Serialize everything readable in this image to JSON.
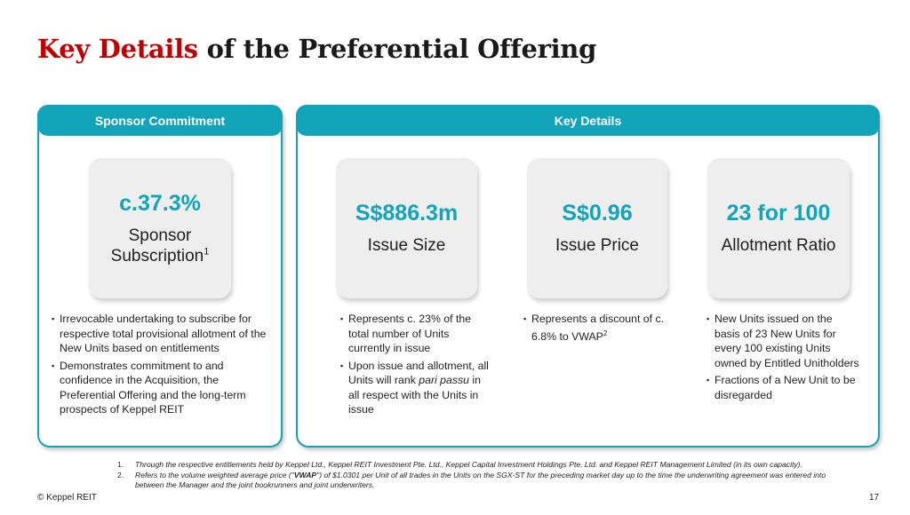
{
  "title": {
    "accent": "Key Details",
    "rest": " of the Preferential Offering"
  },
  "sponsor_panel": {
    "header": "Sponsor Commitment",
    "card": {
      "value": "c.37.3%",
      "label_line1": "Sponsor",
      "label_line2": "Subscription",
      "label_sup": "1"
    },
    "bullets": [
      "Irrevocable undertaking to subscribe for respective total provisional allotment of the New Units based on entitlements",
      "Demonstrates commitment to and confidence in the Acquisition, the Preferential Offering and the long-term prospects of Keppel REIT"
    ]
  },
  "key_details_panel": {
    "header": "Key Details",
    "issue_size": {
      "value": "S$886.3m",
      "label": "Issue Size",
      "bullet1": "Represents c. 23% of the total number of Units currently in issue",
      "bullet2_part1": "Upon issue and allotment, all Units will rank ",
      "bullet2_italic": "pari passu",
      "bullet2_part2": " in all respect with the Units in issue"
    },
    "issue_price": {
      "value": "S$0.96",
      "label": "Issue Price",
      "bullet1": "Represents a discount of c. 6.8% to VWAP",
      "bullet1_sup": "2"
    },
    "allotment_ratio": {
      "value": "23 for 100",
      "label": "Allotment Ratio",
      "bullets": [
        "New Units issued on the basis of 23 New Units for every 100 existing Units owned by Entitled Unitholders",
        "Fractions of a New Unit to be disregarded"
      ]
    }
  },
  "footnotes": {
    "f1_num": "1.",
    "f1_text": "Through the respective entitlements held by Keppel Ltd., Keppel REIT Investment Pte. Ltd., Keppel Capital Investment Holdings Pte. Ltd. and Keppel REIT Management Limited (in its own capacity).",
    "f2_num": "2.",
    "f2_part1": "Refers to the volume weighted average price (\"",
    "f2_bold": "VWAP",
    "f2_part2": "\") of $1.0301 per Unit of all trades in the Units on the SGX-ST for the preceding market day up to the time the underwriting agreement was entered into between the Manager and the joint bookrunners and joint underwriters."
  },
  "copyright": "© Keppel REIT",
  "page_number": "17",
  "colors": {
    "accent_red": "#c00000",
    "teal": "#12a4b8",
    "card_gray": "#eeeeee"
  }
}
